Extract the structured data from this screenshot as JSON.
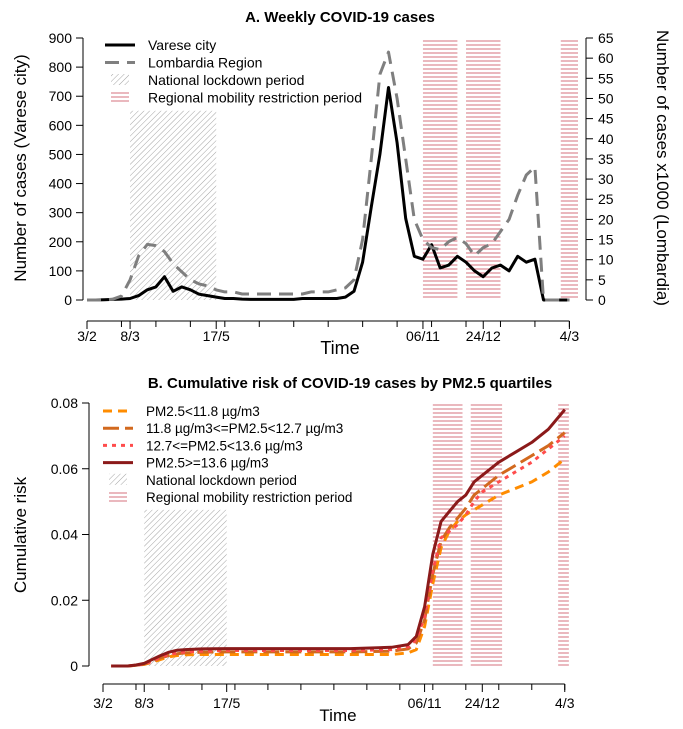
{
  "chart_data": [
    {
      "type": "line",
      "title": "A. Weekly COVID-19 cases",
      "xlabel": "Time",
      "ylabel": "Number of cases (Varese city)",
      "y2label": "Number of cases x1000 (Lombardia)",
      "ylim": [
        0,
        900
      ],
      "y2lim": [
        0,
        65
      ],
      "yticks": [
        0,
        100,
        200,
        300,
        400,
        500,
        600,
        700,
        800,
        900
      ],
      "y2ticks": [
        0,
        5,
        10,
        15,
        20,
        25,
        30,
        35,
        40,
        45,
        50,
        55,
        60,
        65
      ],
      "xticks": [
        {
          "label": "3/2",
          "week": 0
        },
        {
          "label": "8/3",
          "week": 5
        },
        {
          "label": "17/5",
          "week": 15
        },
        {
          "label": "06/11",
          "week": 39
        },
        {
          "label": "24/12",
          "week": 46
        },
        {
          "label": "4/3",
          "week": 56
        }
      ],
      "legend_position": "top-left",
      "legend": [
        {
          "label": "Varese city",
          "kind": "line",
          "color": "#000000",
          "dash": ""
        },
        {
          "label": "Lombardia Region",
          "kind": "line",
          "color": "#7f7f7f",
          "dash": "14,8"
        },
        {
          "label": "National lockdown period",
          "kind": "hatch",
          "color": "#9a9a9a"
        },
        {
          "label": "Regional mobility restriction period",
          "kind": "hlines",
          "color": "#c94c5c"
        }
      ],
      "shaded_periods": [
        {
          "kind": "hatch",
          "start": 5,
          "end": 15,
          "top": 650
        },
        {
          "kind": "hlines",
          "start": 39,
          "end": 43,
          "top": 900
        },
        {
          "kind": "hlines",
          "start": 44,
          "end": 48,
          "top": 900
        },
        {
          "kind": "hlines",
          "start": 55,
          "end": 57,
          "top": 900
        }
      ],
      "series": [
        {
          "name": "Varese city",
          "axis": "left",
          "color": "#000000",
          "dash": "",
          "width": 3,
          "x": [
            0,
            1,
            2,
            3,
            4,
            5,
            6,
            7,
            8,
            9,
            10,
            11,
            12,
            13,
            14,
            15,
            16,
            17,
            18,
            19,
            20,
            21,
            22,
            23,
            24,
            25,
            26,
            27,
            28,
            29,
            30,
            31,
            32,
            33,
            34,
            35,
            36,
            37,
            38,
            39,
            40,
            41,
            42,
            43,
            44,
            45,
            46,
            47,
            48,
            49,
            50,
            51,
            52,
            53,
            54,
            55,
            56
          ],
          "values": [
            0,
            0,
            1,
            2,
            3,
            5,
            15,
            35,
            45,
            80,
            30,
            45,
            35,
            20,
            15,
            10,
            5,
            5,
            3,
            2,
            2,
            2,
            2,
            2,
            2,
            5,
            5,
            5,
            5,
            5,
            10,
            30,
            130,
            320,
            500,
            730,
            540,
            280,
            150,
            140,
            190,
            110,
            120,
            150,
            130,
            100,
            80,
            110,
            120,
            100,
            150,
            130,
            140,
            0,
            0,
            0,
            0
          ]
        },
        {
          "name": "Lombardia Region",
          "axis": "right",
          "color": "#7f7f7f",
          "dash": "14,8",
          "width": 3,
          "x": [
            0,
            1,
            2,
            3,
            4,
            5,
            6,
            7,
            8,
            9,
            10,
            11,
            12,
            13,
            14,
            15,
            16,
            17,
            18,
            19,
            20,
            21,
            22,
            23,
            24,
            25,
            26,
            27,
            28,
            29,
            30,
            31,
            32,
            33,
            34,
            35,
            36,
            37,
            38,
            39,
            40,
            41,
            42,
            43,
            44,
            45,
            46,
            47,
            48,
            49,
            50,
            51,
            52,
            53,
            54,
            55,
            56
          ],
          "values": [
            0,
            0,
            0,
            0.2,
            1,
            5,
            11,
            13.8,
            13.5,
            12,
            9,
            7,
            5,
            4,
            3.5,
            2.5,
            2,
            2,
            1.5,
            1.5,
            1.5,
            1.5,
            1.5,
            1.5,
            1.5,
            1.5,
            2,
            2,
            2,
            2.5,
            3,
            5,
            15,
            35,
            56,
            61.5,
            50,
            35,
            20,
            15,
            13,
            12.5,
            14.5,
            15.5,
            14,
            11,
            13,
            14,
            17,
            20,
            26,
            31,
            33,
            0,
            0,
            0,
            0
          ]
        }
      ]
    },
    {
      "type": "line",
      "title": "B. Cumulative risk of COVID-19 cases by PM2.5 quartiles",
      "xlabel": "Time",
      "ylabel": "Cumulative risk",
      "ylim": [
        0,
        0.08
      ],
      "yticks": [
        0,
        0.02,
        0.04,
        0.06,
        0.08
      ],
      "ytick_labels": [
        "0",
        "0.02",
        "0.04",
        "0.06",
        "0.08"
      ],
      "xticks": [
        {
          "label": "3/2",
          "week": 0
        },
        {
          "label": "8/3",
          "week": 5
        },
        {
          "label": "17/5",
          "week": 15
        },
        {
          "label": "06/11",
          "week": 39
        },
        {
          "label": "24/12",
          "week": 46
        },
        {
          "label": "4/3",
          "week": 56
        }
      ],
      "legend_position": "top-left",
      "legend": [
        {
          "label": "PM2.5<11.8 µg/m3",
          "kind": "line",
          "color": "#ff8c00",
          "dash": "9,6"
        },
        {
          "label": "11.8 µg/m3<=PM2.5<12.7 µg/m3",
          "kind": "line",
          "color": "#d2691e",
          "dash": "16,6"
        },
        {
          "label": "12.7<=PM2.5<13.6 µg/m3",
          "kind": "line",
          "color": "#ff4c4c",
          "dash": "4,5"
        },
        {
          "label": "PM2.5>=13.6 µg/m3",
          "kind": "line",
          "color": "#8b1a1a",
          "dash": ""
        },
        {
          "label": "National lockdown period",
          "kind": "hatch",
          "color": "#9a9a9a"
        },
        {
          "label": "Regional mobility restriction period",
          "kind": "hlines",
          "color": "#c94c5c"
        }
      ],
      "shaded_periods": [
        {
          "kind": "hatch",
          "start": 5,
          "end": 15,
          "top": 0.0475
        },
        {
          "kind": "hlines",
          "start": 40,
          "end": 43.6,
          "top": 0.08
        },
        {
          "kind": "hlines",
          "start": 44.6,
          "end": 48.4,
          "top": 0.08
        },
        {
          "kind": "hlines",
          "start": 55.2,
          "end": 56.5,
          "top": 0.08
        }
      ],
      "series": [
        {
          "name": "PM2.5<11.8 µg/m3",
          "color": "#ff8c00",
          "dash": "9,6",
          "width": 3,
          "x": [
            1,
            3,
            4,
            5,
            6,
            7,
            8,
            9,
            10,
            12,
            15,
            20,
            25,
            30,
            35,
            37,
            38,
            39,
            40,
            41,
            42,
            43,
            44,
            45,
            46,
            48,
            50,
            52,
            54,
            56
          ],
          "values": [
            0,
            0,
            0.0002,
            0.0005,
            0.0012,
            0.002,
            0.0028,
            0.0032,
            0.0034,
            0.0035,
            0.0035,
            0.0035,
            0.0035,
            0.0035,
            0.0035,
            0.004,
            0.005,
            0.012,
            0.025,
            0.036,
            0.041,
            0.044,
            0.046,
            0.0475,
            0.049,
            0.052,
            0.054,
            0.056,
            0.059,
            0.063
          ]
        },
        {
          "name": "11.8 µg/m3<=PM2.5<12.7 µg/m3",
          "color": "#d2691e",
          "dash": "16,6",
          "width": 3,
          "x": [
            1,
            3,
            4,
            5,
            6,
            7,
            8,
            9,
            10,
            12,
            15,
            20,
            25,
            30,
            35,
            37,
            38,
            39,
            40,
            41,
            42,
            43,
            44,
            45,
            46,
            48,
            50,
            52,
            54,
            56
          ],
          "values": [
            0,
            0,
            0.0002,
            0.0006,
            0.0014,
            0.0025,
            0.0032,
            0.0037,
            0.004,
            0.0042,
            0.0043,
            0.0043,
            0.0043,
            0.0043,
            0.0045,
            0.0052,
            0.007,
            0.014,
            0.028,
            0.038,
            0.042,
            0.045,
            0.048,
            0.052,
            0.054,
            0.058,
            0.061,
            0.064,
            0.067,
            0.071
          ]
        },
        {
          "name": "12.7<=PM2.5<13.6 µg/m3",
          "color": "#ff4c4c",
          "dash": "4,5",
          "width": 3,
          "x": [
            1,
            3,
            4,
            5,
            6,
            7,
            8,
            9,
            10,
            12,
            15,
            20,
            25,
            30,
            35,
            37,
            38,
            39,
            40,
            41,
            42,
            43,
            44,
            45,
            46,
            48,
            50,
            52,
            54,
            56
          ],
          "values": [
            0,
            0,
            0.0002,
            0.0006,
            0.0015,
            0.0027,
            0.0035,
            0.004,
            0.0043,
            0.0045,
            0.0047,
            0.0047,
            0.0047,
            0.0047,
            0.005,
            0.0058,
            0.008,
            0.015,
            0.029,
            0.039,
            0.041,
            0.043,
            0.046,
            0.05,
            0.053,
            0.056,
            0.059,
            0.062,
            0.066,
            0.07
          ]
        },
        {
          "name": "PM2.5>=13.6 µg/m3",
          "color": "#8b1a1a",
          "dash": "",
          "width": 3,
          "x": [
            1,
            3,
            4,
            5,
            6,
            7,
            8,
            9,
            10,
            12,
            15,
            20,
            25,
            30,
            35,
            37,
            38,
            39,
            40,
            41,
            42,
            43,
            44,
            45,
            46,
            48,
            50,
            52,
            54,
            56
          ],
          "values": [
            0,
            0,
            0.0003,
            0.0008,
            0.002,
            0.0032,
            0.0042,
            0.0048,
            0.005,
            0.0052,
            0.0053,
            0.0053,
            0.0053,
            0.0053,
            0.0057,
            0.0065,
            0.009,
            0.018,
            0.034,
            0.044,
            0.047,
            0.05,
            0.052,
            0.056,
            0.058,
            0.062,
            0.065,
            0.068,
            0.072,
            0.078
          ]
        }
      ]
    }
  ]
}
